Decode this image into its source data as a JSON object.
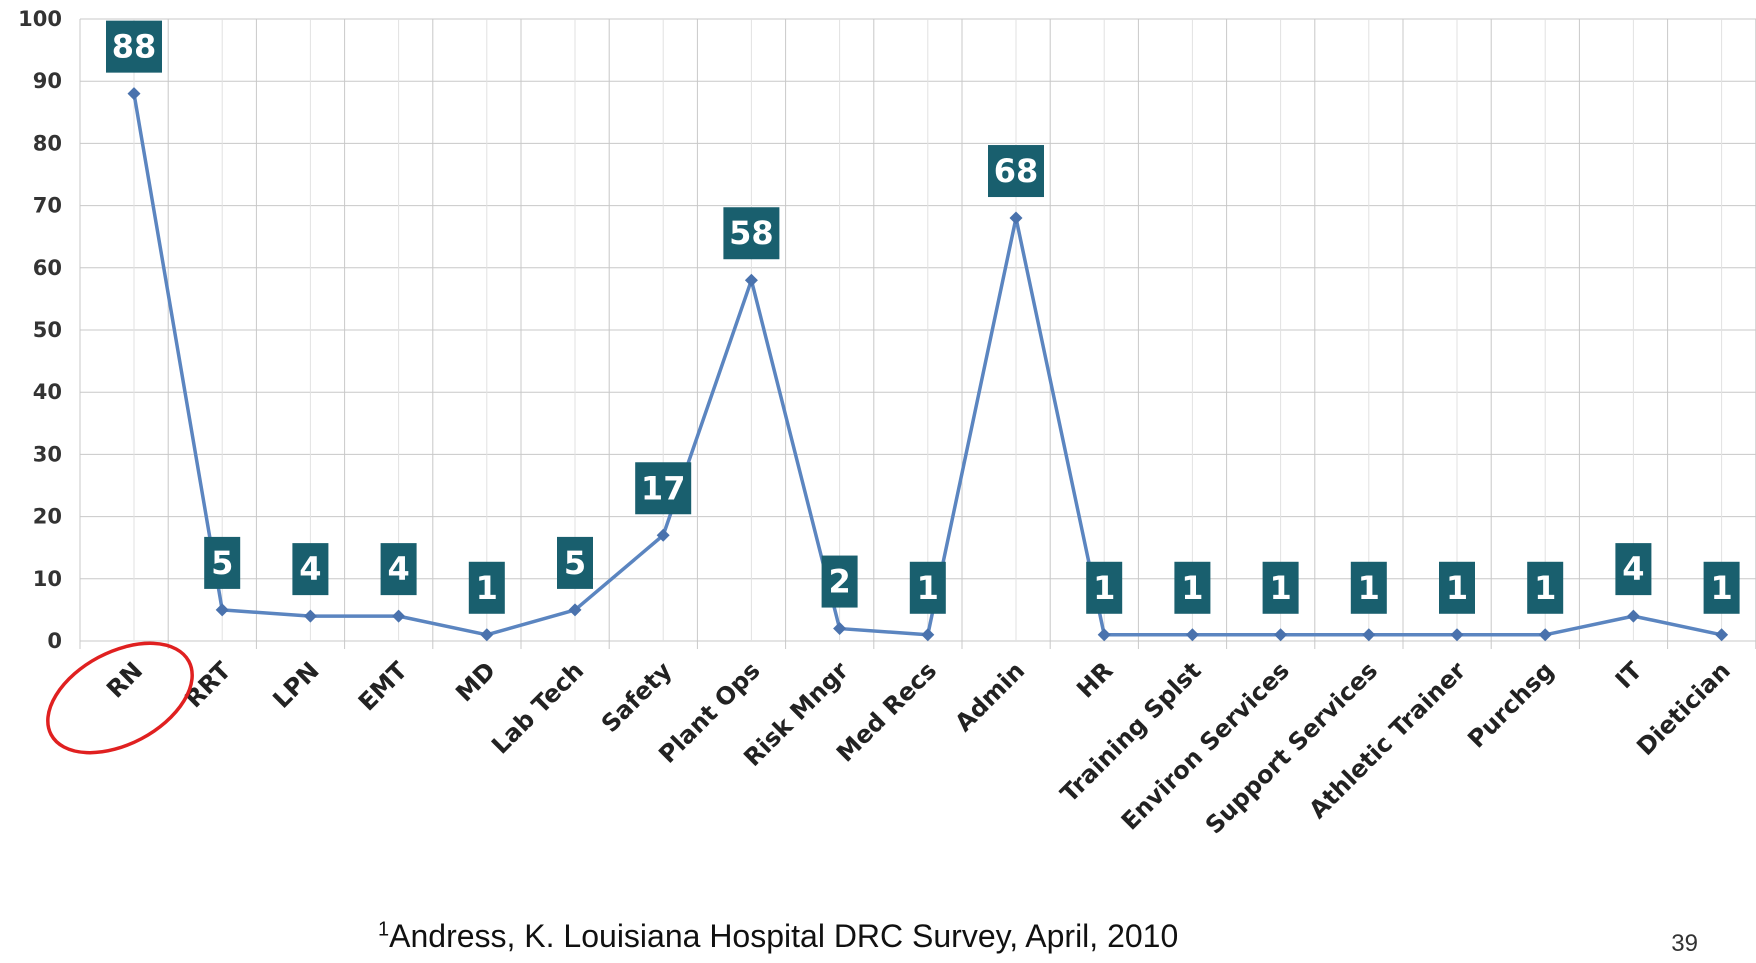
{
  "chart_data": {
    "type": "line",
    "categories": [
      "RN",
      "RRT",
      "LPN",
      "EMT",
      "MD",
      "Lab Tech",
      "Safety",
      "Plant Ops",
      "Risk Mngr",
      "Med Recs",
      "Admin",
      "HR",
      "Training Splst",
      "Environ Services",
      "Support Services",
      "Athletic Trainer",
      "Purchsg",
      "IT",
      "Dietician"
    ],
    "values": [
      88,
      5,
      4,
      4,
      1,
      5,
      17,
      58,
      2,
      1,
      68,
      1,
      1,
      1,
      1,
      1,
      1,
      4,
      1
    ],
    "ylim": [
      0,
      100
    ],
    "yticks": [
      0,
      10,
      20,
      30,
      40,
      50,
      60,
      70,
      80,
      90,
      100
    ],
    "grid": true,
    "data_labels": true,
    "highlight": "RN",
    "colors": {
      "line": "#5b85c0",
      "marker": "#4a72ad",
      "label_box": "#195f6e",
      "grid": "#c8c8c8",
      "highlight_circle": "#e02020"
    }
  },
  "footnote": {
    "superscript": "1",
    "text": "Andress, K. Louisiana Hospital DRC Survey, April, 2010"
  },
  "page_number": "39"
}
